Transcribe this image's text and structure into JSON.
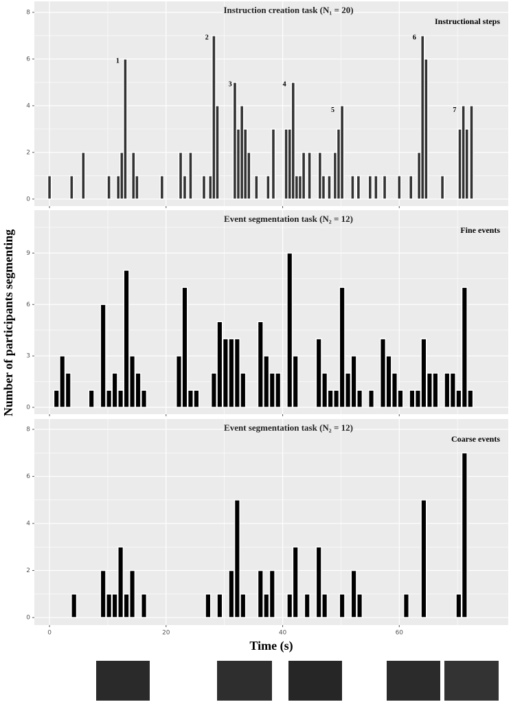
{
  "chart_data": [
    {
      "type": "bar",
      "title": "Instruction creation task (N₁ = 20)",
      "label": "Instructional steps",
      "color": "#333333",
      "x": [
        0,
        3.8,
        5.8,
        10.2,
        11.8,
        12.4,
        13,
        14.4,
        15,
        19.3,
        22.5,
        23.2,
        24.2,
        26.5,
        27.6,
        28.2,
        28.8,
        31.8,
        32.4,
        33,
        33.6,
        34.2,
        35.5,
        37.5,
        38.4,
        40.6,
        41.2,
        41.8,
        42.4,
        43,
        43.6,
        44.6,
        46.4,
        47,
        48,
        49,
        49.6,
        50.2,
        52,
        53,
        55,
        56,
        57.5,
        60,
        62,
        63.4,
        64,
        64.6,
        67.4,
        70.4,
        71,
        71.6,
        72.4
      ],
      "values": [
        1,
        1,
        2,
        1,
        1,
        2,
        6,
        2,
        1,
        1,
        2,
        1,
        2,
        1,
        1,
        7,
        4,
        5,
        3,
        4,
        3,
        2,
        1,
        1,
        3,
        3,
        3,
        5,
        1,
        1,
        2,
        2,
        2,
        1,
        1,
        2,
        3,
        4,
        1,
        1,
        1,
        1,
        1,
        1,
        1,
        2,
        7,
        6,
        1,
        3,
        4,
        3,
        4
      ],
      "annotations": [
        "1",
        "2",
        "3",
        "4",
        "5",
        "6",
        "7"
      ],
      "xlim": [
        -2.6,
        78.7
      ],
      "xticks": [
        0,
        20,
        40,
        60
      ],
      "ylim": [
        -0.3,
        8.47
      ],
      "yticks": [
        0,
        2,
        4,
        6,
        8
      ],
      "grid": true
    },
    {
      "type": "bar",
      "title": "Event segmentation task (N₂ = 12)",
      "label": "Fine events",
      "color": "#000000",
      "ylabel": "Number of participants segmenting",
      "x": [
        1.2,
        2.2,
        3.2,
        7.2,
        9.2,
        10.2,
        11.2,
        12.2,
        13.2,
        14.2,
        15.2,
        16.2,
        22.2,
        23.2,
        24.2,
        25.2,
        28.2,
        29.2,
        30.2,
        31.2,
        32.2,
        33.2,
        36.2,
        37.2,
        38.2,
        39.2,
        41.2,
        42.2,
        46.2,
        47.2,
        48.2,
        49.2,
        50.2,
        51.2,
        52.2,
        53.2,
        55.2,
        57.2,
        58.2,
        59.2,
        60.2,
        62.2,
        63.2,
        64.2,
        65.2,
        66.2,
        68.2,
        69.2,
        70.2,
        71.2,
        72.2
      ],
      "values": [
        1,
        3,
        2,
        1,
        6,
        1,
        2,
        1,
        8,
        3,
        2,
        1,
        3,
        7,
        1,
        1,
        2,
        5,
        4,
        4,
        4,
        2,
        5,
        3,
        2,
        2,
        9,
        3,
        4,
        2,
        1,
        1,
        7,
        2,
        3,
        1,
        1,
        4,
        3,
        2,
        1,
        1,
        1,
        4,
        2,
        2,
        2,
        2,
        1,
        7,
        1
      ],
      "xlim": [
        -2.6,
        78.7
      ],
      "xticks": [
        0,
        20,
        40,
        60
      ],
      "ylim": [
        -0.4,
        11.5
      ],
      "yticks": [
        0,
        3,
        6,
        9
      ],
      "grid": true
    },
    {
      "type": "bar",
      "title": "Event segmentation task (N₂ = 12)",
      "label": "Coarse events",
      "color": "#000000",
      "xlabel": "Time (s)",
      "x": [
        4.2,
        9.2,
        10.2,
        11.2,
        12.2,
        13.2,
        14.2,
        16.2,
        27.2,
        29.2,
        31.2,
        32.2,
        33.2,
        36.2,
        37.2,
        38.2,
        41.2,
        42.2,
        44.2,
        46.2,
        47.2,
        50.2,
        52.2,
        53.2,
        61.2,
        64.2,
        70.2,
        71.2
      ],
      "values": [
        1,
        2,
        1,
        1,
        3,
        1,
        2,
        1,
        1,
        1,
        2,
        5,
        1,
        2,
        1,
        2,
        1,
        3,
        1,
        3,
        1,
        1,
        2,
        1,
        1,
        5,
        1,
        7
      ],
      "xlim": [
        -2.6,
        78.7
      ],
      "xticks": [
        0,
        20,
        40,
        60
      ],
      "ylim": [
        -0.32,
        8.44
      ],
      "yticks": [
        0,
        2,
        4,
        6,
        8
      ],
      "grid": true
    }
  ]
}
